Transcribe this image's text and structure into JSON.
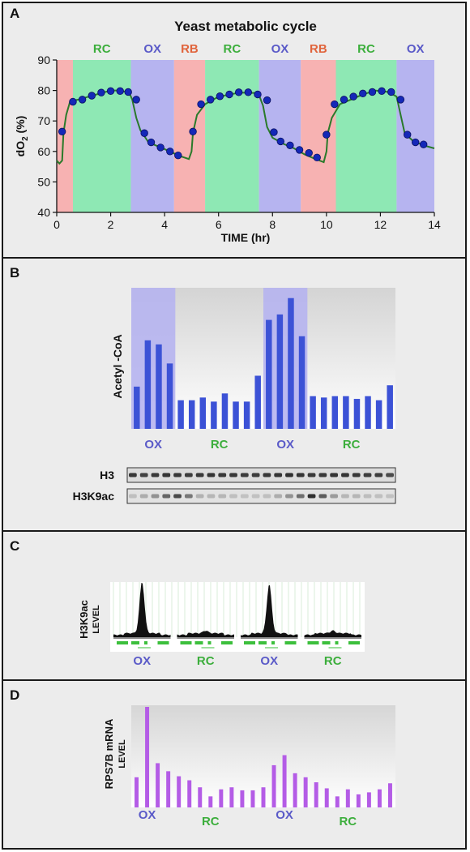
{
  "colors": {
    "panel_bg": "#ececec",
    "RB": "#f7b2b2",
    "RC": "#8ee8b4",
    "OX": "#b6b4f0",
    "trace": "#2a7a2a",
    "point": "#1428b8",
    "bar_blue": "#3c52d6",
    "bar_purple": "#b45ce6",
    "ox_text": "#5a5ac8",
    "rc_text": "#3cae3c",
    "rb_text": "#e0643c",
    "peak_green": "#3cbf3c"
  },
  "panelA": {
    "letter": "A",
    "chart_data": {
      "type": "line",
      "title": "Yeast metabolic cycle",
      "xlabel": "TIME (hr)",
      "ylabel_main": "dO",
      "ylabel_sub": "2",
      "ylabel_unit": "(%)",
      "xlim": [
        0,
        14
      ],
      "ylim": [
        40,
        90
      ],
      "xticks": [
        0,
        2,
        4,
        6,
        8,
        10,
        12,
        14
      ],
      "yticks": [
        40,
        50,
        60,
        70,
        80,
        90
      ],
      "phases": [
        {
          "label": "",
          "phase": "RB",
          "start": 0,
          "end": 0.6
        },
        {
          "label": "RC",
          "phase": "RC",
          "start": 0.6,
          "end": 2.75
        },
        {
          "label": "OX",
          "phase": "OX",
          "start": 2.75,
          "end": 4.35
        },
        {
          "label": "RB",
          "phase": "RB",
          "start": 4.35,
          "end": 5.5
        },
        {
          "label": "RC",
          "phase": "RC",
          "start": 5.5,
          "end": 7.5
        },
        {
          "label": "OX",
          "phase": "OX",
          "start": 7.5,
          "end": 9.05
        },
        {
          "label": "RB",
          "phase": "RB",
          "start": 9.05,
          "end": 10.35
        },
        {
          "label": "RC",
          "phase": "RC",
          "start": 10.35,
          "end": 12.6
        },
        {
          "label": "OX",
          "phase": "OX",
          "start": 12.6,
          "end": 14
        }
      ],
      "trace": [
        [
          0,
          57
        ],
        [
          0.1,
          56
        ],
        [
          0.2,
          57
        ],
        [
          0.25,
          66
        ],
        [
          0.35,
          72
        ],
        [
          0.5,
          76.5
        ],
        [
          0.8,
          77
        ],
        [
          1.2,
          78
        ],
        [
          1.6,
          79
        ],
        [
          2.0,
          80
        ],
        [
          2.4,
          80
        ],
        [
          2.7,
          79
        ],
        [
          2.8,
          77
        ],
        [
          2.95,
          71
        ],
        [
          3.1,
          67
        ],
        [
          3.4,
          63
        ],
        [
          3.8,
          61.5
        ],
        [
          4.2,
          60
        ],
        [
          4.5,
          58.7
        ],
        [
          4.9,
          57.5
        ],
        [
          5.0,
          60
        ],
        [
          5.05,
          66
        ],
        [
          5.2,
          72
        ],
        [
          5.5,
          75.5
        ],
        [
          5.9,
          77.5
        ],
        [
          6.3,
          78.5
        ],
        [
          6.8,
          79.3
        ],
        [
          7.3,
          79.2
        ],
        [
          7.5,
          78.5
        ],
        [
          7.65,
          75
        ],
        [
          7.8,
          68
        ],
        [
          8.0,
          64.5
        ],
        [
          8.4,
          62.5
        ],
        [
          8.8,
          61
        ],
        [
          9.2,
          59
        ],
        [
          9.6,
          57.5
        ],
        [
          9.9,
          56.5
        ],
        [
          10.0,
          60
        ],
        [
          10.05,
          66
        ],
        [
          10.2,
          71
        ],
        [
          10.5,
          75.5
        ],
        [
          10.9,
          77
        ],
        [
          11.3,
          78.5
        ],
        [
          11.8,
          80
        ],
        [
          12.3,
          79.5
        ],
        [
          12.6,
          78
        ],
        [
          12.75,
          72
        ],
        [
          12.9,
          66
        ],
        [
          13.2,
          63.5
        ],
        [
          13.6,
          62
        ],
        [
          14,
          61
        ]
      ],
      "points": [
        [
          0.2,
          66.5
        ],
        [
          0.6,
          76.3
        ],
        [
          0.95,
          77
        ],
        [
          1.3,
          78.3
        ],
        [
          1.65,
          79.3
        ],
        [
          2.0,
          79.8
        ],
        [
          2.35,
          79.8
        ],
        [
          2.65,
          79.5
        ],
        [
          2.95,
          77
        ],
        [
          3.25,
          66
        ],
        [
          3.5,
          63
        ],
        [
          3.85,
          61.3
        ],
        [
          4.2,
          60
        ],
        [
          4.5,
          58.7
        ],
        [
          5.05,
          66.5
        ],
        [
          5.35,
          75.5
        ],
        [
          5.7,
          77
        ],
        [
          6.05,
          78.1
        ],
        [
          6.4,
          78.7
        ],
        [
          6.75,
          79.4
        ],
        [
          7.1,
          79.4
        ],
        [
          7.45,
          78.7
        ],
        [
          7.8,
          76.8
        ],
        [
          8.05,
          66.3
        ],
        [
          8.3,
          63.3
        ],
        [
          8.65,
          62
        ],
        [
          9.0,
          60.5
        ],
        [
          9.35,
          59.5
        ],
        [
          9.65,
          58
        ],
        [
          10.0,
          65.5
        ],
        [
          10.3,
          75.5
        ],
        [
          10.65,
          77
        ],
        [
          11.0,
          78
        ],
        [
          11.35,
          79
        ],
        [
          11.7,
          79.5
        ],
        [
          12.05,
          79.8
        ],
        [
          12.4,
          79.5
        ],
        [
          12.75,
          77
        ],
        [
          13.0,
          65.5
        ],
        [
          13.3,
          63
        ],
        [
          13.6,
          62.3
        ]
      ]
    }
  },
  "panelB": {
    "letter": "B",
    "chart_data": {
      "type": "bar",
      "ylabel": "Acetyl -CoA",
      "values": [
        0.31,
        0.65,
        0.62,
        0.48,
        0.21,
        0.21,
        0.23,
        0.2,
        0.26,
        0.2,
        0.2,
        0.39,
        0.8,
        0.84,
        0.96,
        0.68,
        0.24,
        0.23,
        0.24,
        0.24,
        0.22,
        0.24,
        0.21,
        0.32
      ],
      "ylim": [
        0,
        1
      ],
      "highlight_ranges": [
        [
          0,
          3
        ],
        [
          12,
          15
        ]
      ],
      "phase_labels": [
        {
          "text": "OX",
          "phase": "OX",
          "center": 1.5
        },
        {
          "text": "RC",
          "phase": "RC",
          "center": 7.5
        },
        {
          "text": "OX",
          "phase": "OX",
          "center": 13.5
        },
        {
          "text": "RC",
          "phase": "RC",
          "center": 19.5
        }
      ]
    },
    "blot": {
      "labels": [
        "H3",
        "H3K9ac"
      ],
      "h3_intensity": [
        0.8,
        0.75,
        0.8,
        0.82,
        0.8,
        0.78,
        0.8,
        0.82,
        0.8,
        0.8,
        0.78,
        0.78,
        0.8,
        0.82,
        0.85,
        0.82,
        0.8,
        0.8,
        0.82,
        0.82,
        0.8,
        0.78,
        0.78,
        0.7
      ],
      "h3k9ac_intensity": [
        0.05,
        0.15,
        0.3,
        0.55,
        0.7,
        0.45,
        0.12,
        0.1,
        0.1,
        0.05,
        0.04,
        0.04,
        0.05,
        0.15,
        0.3,
        0.5,
        0.85,
        0.6,
        0.25,
        0.1,
        0.1,
        0.06,
        0.05,
        0.04
      ]
    }
  },
  "panelC": {
    "letter": "C",
    "ylabel": "H3K9ac",
    "ylabel2": "LEVEL",
    "chart_data": {
      "type": "area",
      "tracks": [
        {
          "phase": "OX",
          "peak": 1.0
        },
        {
          "phase": "RC",
          "peak": 0.05
        },
        {
          "phase": "OX",
          "peak": 0.95
        },
        {
          "phase": "RC",
          "peak": 0.05
        }
      ]
    },
    "phase_labels": [
      {
        "text": "OX",
        "phase": "OX"
      },
      {
        "text": "RC",
        "phase": "RC"
      },
      {
        "text": "OX",
        "phase": "OX"
      },
      {
        "text": "RC",
        "phase": "RC"
      }
    ]
  },
  "panelD": {
    "letter": "D",
    "chart_data": {
      "type": "bar",
      "ylabel": "RPS7B mRNA",
      "ylabel2": "LEVEL",
      "values": [
        0.3,
        1.0,
        0.44,
        0.36,
        0.31,
        0.27,
        0.2,
        0.11,
        0.18,
        0.2,
        0.17,
        0.17,
        0.2,
        0.42,
        0.52,
        0.34,
        0.3,
        0.25,
        0.19,
        0.11,
        0.18,
        0.13,
        0.15,
        0.18,
        0.24
      ],
      "ylim": [
        0,
        1
      ],
      "phase_labels": [
        {
          "text": "OX",
          "phase": "OX",
          "center": 1
        },
        {
          "text": "RC",
          "phase": "RC",
          "center": 7
        },
        {
          "text": "OX",
          "phase": "OX",
          "center": 14
        },
        {
          "text": "RC",
          "phase": "RC",
          "center": 20
        }
      ]
    }
  }
}
